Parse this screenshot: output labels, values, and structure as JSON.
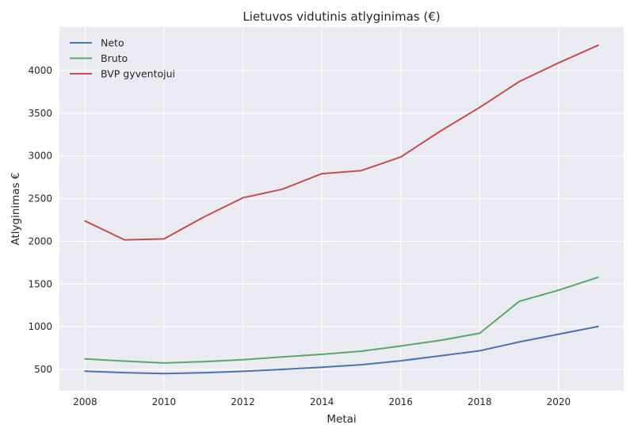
{
  "chart_data": {
    "type": "line",
    "title": "Lietuvos vidutinis atlyginimas (€)",
    "xlabel": "Metai",
    "ylabel": "Atlyginimas €",
    "x": [
      2008,
      2009,
      2010,
      2011,
      2012,
      2013,
      2014,
      2015,
      2016,
      2017,
      2018,
      2019,
      2020,
      2021
    ],
    "xlim": [
      2007.35,
      2021.65
    ],
    "ylim": [
      250,
      4510
    ],
    "xticks": [
      2008,
      2010,
      2012,
      2014,
      2016,
      2018,
      2020
    ],
    "yticks": [
      500,
      1000,
      1500,
      2000,
      2500,
      3000,
      3500,
      4000
    ],
    "grid": true,
    "legend_position": "top-left",
    "series": [
      {
        "name": "Neto",
        "color": "#4c72b0",
        "values": [
          479,
          463,
          451,
          462,
          478,
          501,
          527,
          555,
          602,
          659,
          719,
          822,
          913,
          1003
        ]
      },
      {
        "name": "Bruto",
        "color": "#55a868",
        "values": [
          623,
          598,
          576,
          592,
          615,
          646,
          677,
          714,
          774,
          840,
          924,
          1297,
          1428,
          1579
        ]
      },
      {
        "name": "BVP gyventojui",
        "color": "#c44e52",
        "values": [
          2238,
          2017,
          2028,
          2283,
          2510,
          2610,
          2792,
          2828,
          2987,
          3290,
          3568,
          3870,
          4090,
          4295
        ]
      }
    ]
  }
}
